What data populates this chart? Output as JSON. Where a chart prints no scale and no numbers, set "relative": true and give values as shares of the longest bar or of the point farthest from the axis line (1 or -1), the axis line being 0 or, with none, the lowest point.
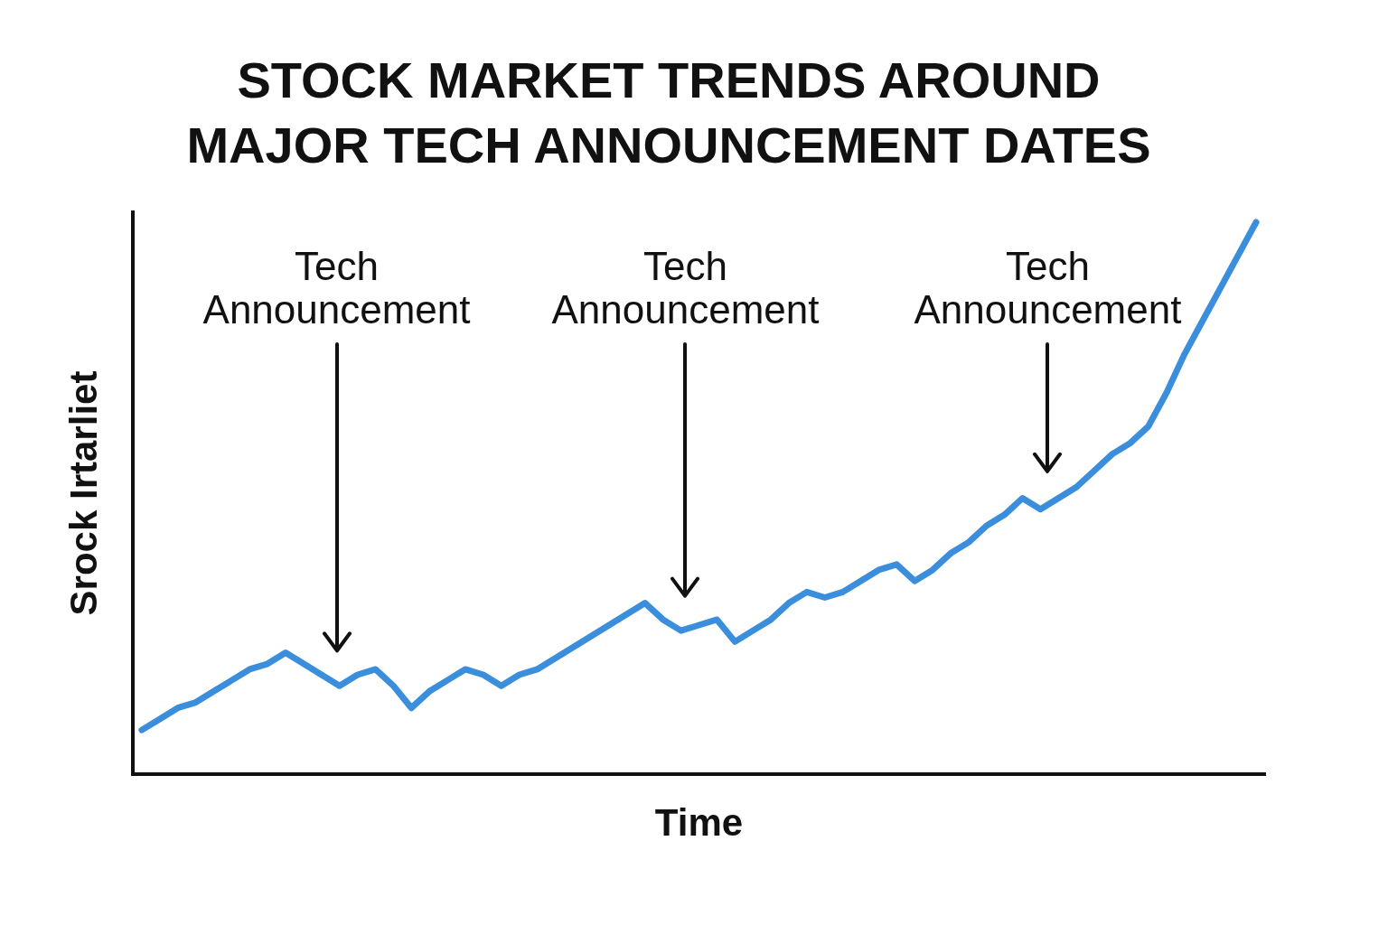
{
  "chart_data": {
    "type": "line",
    "title": "STOCK MARKET TRENDS AROUND MAJOR TECH ANNOUNCEMENT DATES",
    "xlabel": "Time",
    "ylabel": "Srock Irtarliet",
    "relative": true,
    "color": "#3a8edc",
    "categories": [
      null,
      null,
      null,
      null,
      null,
      null,
      null,
      null,
      null,
      null,
      null,
      null,
      null,
      null,
      null,
      null,
      null,
      null,
      null,
      null,
      null,
      null,
      null,
      null,
      null,
      null,
      null,
      null,
      null,
      null,
      null,
      null,
      null,
      null,
      null,
      null,
      null,
      null,
      null,
      null,
      null,
      null,
      null,
      null,
      null,
      null,
      null,
      null,
      null,
      null,
      null,
      null,
      null,
      null,
      null,
      null,
      null,
      null,
      null,
      null,
      null,
      null,
      null
    ],
    "values": [
      0.08,
      0.1,
      0.12,
      0.13,
      0.15,
      0.17,
      0.19,
      0.2,
      0.22,
      0.2,
      0.18,
      0.16,
      0.18,
      0.19,
      0.16,
      0.12,
      0.15,
      0.17,
      0.19,
      0.18,
      0.16,
      0.18,
      0.19,
      0.21,
      0.23,
      0.25,
      0.27,
      0.29,
      0.31,
      0.28,
      0.26,
      0.27,
      0.28,
      0.24,
      0.26,
      0.28,
      0.31,
      0.33,
      0.32,
      0.33,
      0.35,
      0.37,
      0.38,
      0.35,
      0.37,
      0.4,
      0.42,
      0.45,
      0.47,
      0.5,
      0.48,
      0.5,
      0.52,
      0.55,
      0.58,
      0.6,
      0.63,
      0.69,
      0.76,
      0.82,
      0.88,
      0.94,
      1
    ],
    "annotations": [
      "Tech Announcement",
      "Tech Announcement",
      "Tech Announcement"
    ]
  }
}
